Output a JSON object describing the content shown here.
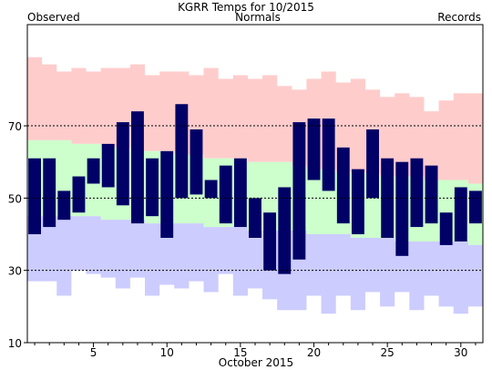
{
  "chart_data": {
    "type": "bar",
    "title": "KGRR Temps for 10/2015",
    "xlabel": "October 2015",
    "ylabel": "",
    "legend": [
      {
        "name": "Observed",
        "color": "#000066",
        "placement": "top-left"
      },
      {
        "name": "Normals",
        "color": "#006600",
        "placement": "top-center"
      },
      {
        "name": "Records",
        "color": "#cc88cc",
        "placement": "top-right"
      }
    ],
    "xlim": [
      0.5,
      31.5
    ],
    "ylim": [
      10,
      98
    ],
    "x_ticks": [
      5,
      10,
      15,
      20,
      25,
      30
    ],
    "y_ticks": [
      10,
      30,
      50,
      70
    ],
    "y_gridlines": [
      30,
      50,
      70
    ],
    "grid": "dashed horizontal lines at 30, 50, 70",
    "colors": {
      "observed": "#000066",
      "normal": "#ccffcc",
      "record_high": "#ffcccc",
      "record_low": "#ccccff"
    },
    "days": [
      1,
      2,
      3,
      4,
      5,
      6,
      7,
      8,
      9,
      10,
      11,
      12,
      13,
      14,
      15,
      16,
      17,
      18,
      19,
      20,
      21,
      22,
      23,
      24,
      25,
      26,
      27,
      28,
      29,
      30,
      31
    ],
    "observed_high": [
      61,
      61,
      52,
      56,
      61,
      65,
      71,
      74,
      61,
      63,
      76,
      69,
      55,
      59,
      61,
      50,
      46,
      53,
      71,
      72,
      72,
      64,
      58,
      69,
      61,
      60,
      61,
      59,
      46,
      53,
      52
    ],
    "observed_low": [
      40,
      42,
      44,
      46,
      54,
      53,
      48,
      43,
      45,
      39,
      50,
      51,
      50,
      43,
      42,
      39,
      30,
      29,
      33,
      55,
      52,
      43,
      40,
      50,
      39,
      34,
      42,
      43,
      37,
      38,
      43
    ],
    "normal_high": [
      66,
      66,
      66,
      65,
      65,
      64,
      64,
      63,
      63,
      63,
      62,
      62,
      61,
      61,
      61,
      60,
      60,
      60,
      59,
      58,
      58,
      57,
      57,
      57,
      56,
      56,
      56,
      55,
      55,
      55,
      54
    ],
    "normal_low": [
      45,
      45,
      45,
      45,
      45,
      44,
      44,
      44,
      43,
      43,
      43,
      43,
      42,
      42,
      42,
      41,
      41,
      41,
      41,
      40,
      40,
      40,
      39,
      39,
      39,
      38,
      38,
      38,
      38,
      38,
      37
    ],
    "record_high": [
      89,
      87,
      85,
      86,
      85,
      86,
      86,
      87,
      84,
      85,
      85,
      84,
      86,
      83,
      84,
      83,
      84,
      81,
      80,
      83,
      85,
      82,
      83,
      80,
      78,
      79,
      78,
      74,
      77,
      79,
      79
    ],
    "record_low": [
      27,
      27,
      23,
      30,
      29,
      28,
      25,
      28,
      23,
      26,
      25,
      27,
      24,
      29,
      23,
      25,
      22,
      19,
      19,
      23,
      18,
      23,
      19,
      24,
      20,
      24,
      19,
      23,
      20,
      18,
      20
    ]
  }
}
